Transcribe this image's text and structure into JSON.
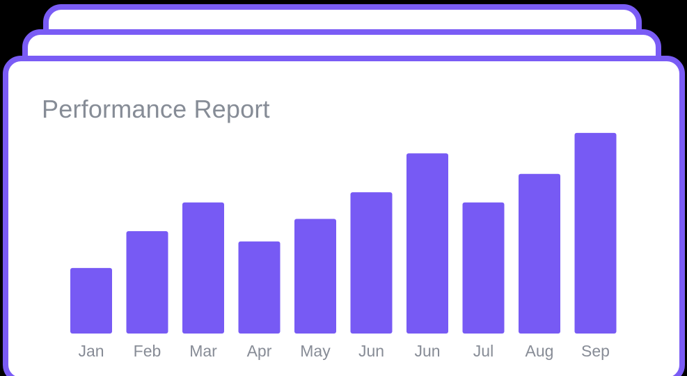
{
  "chart_data": {
    "type": "bar",
    "title": "Performance Report",
    "categories": [
      "Jan",
      "Feb",
      "Mar",
      "Apr",
      "May",
      "Jun",
      "Jun",
      "Jul",
      "Aug",
      "Sep"
    ],
    "values": [
      32,
      50,
      64,
      45,
      56,
      69,
      88,
      64,
      78,
      98
    ],
    "ylim": [
      0,
      100
    ],
    "grid": false,
    "legend": "none",
    "colors": {
      "bar": "#775af4",
      "frame": "#7a5cf5",
      "title": "#868c96",
      "tick_label": "#878c96"
    }
  }
}
